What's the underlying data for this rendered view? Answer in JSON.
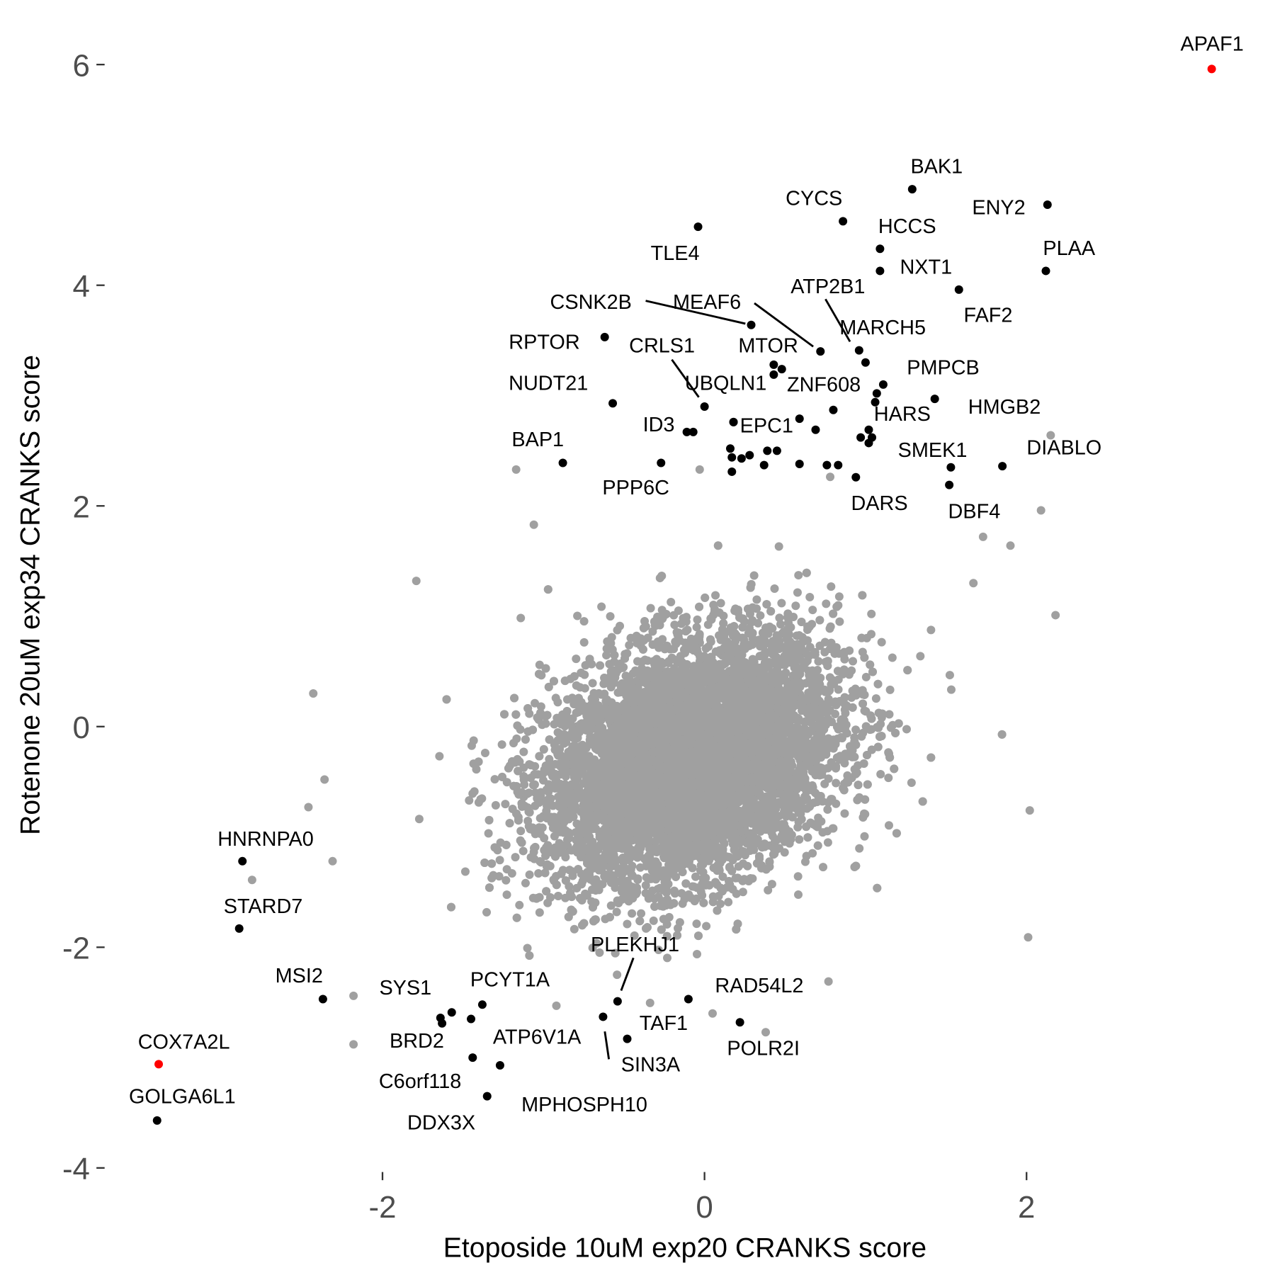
{
  "chart_data": {
    "type": "scatter",
    "title": "",
    "xlabel": "Etoposide 10uM exp20 CRANKS score",
    "ylabel": "Rotenone 20uM exp34 CRANKS score",
    "xlim": [
      -3.55,
      3.5
    ],
    "ylim": [
      -4.1,
      6.5
    ],
    "xticks": [
      -2,
      0,
      2
    ],
    "yticks": [
      -4,
      -2,
      0,
      2,
      4,
      6
    ],
    "grid": false,
    "colors": {
      "background_genes": "#a0a0a0",
      "hit": "#000000",
      "highlight": "#ff0000",
      "tick_text": "#4d4d4d"
    },
    "background_genes": {
      "description_n": 9000,
      "mean": [
        -0.08,
        -0.3
      ],
      "sd": [
        0.45,
        0.55
      ],
      "corr": 0.3,
      "outliers": [
        [
          -1.17,
          2.33
        ],
        [
          -1.79,
          1.32
        ],
        [
          2.15,
          2.64
        ],
        [
          2.18,
          1.01
        ],
        [
          2.01,
          -1.91
        ],
        [
          2.02,
          -0.76
        ],
        [
          -2.43,
          0.3
        ],
        [
          -2.46,
          -0.73
        ],
        [
          -2.36,
          -0.48
        ],
        [
          -2.18,
          -2.88
        ],
        [
          -2.18,
          -2.44
        ],
        [
          -2.81,
          -1.39
        ],
        [
          -2.31,
          -1.22
        ],
        [
          2.09,
          1.96
        ],
        [
          1.9,
          1.64
        ],
        [
          0.38,
          -2.77
        ],
        [
          0.77,
          -2.31
        ],
        [
          -0.92,
          -2.53
        ],
        [
          0.05,
          -2.6
        ],
        [
          -0.03,
          2.33
        ],
        [
          1.67,
          1.3
        ],
        [
          1.73,
          1.72
        ],
        [
          -1.06,
          1.83
        ]
      ]
    },
    "hits": [
      {
        "label": "APAF1",
        "x": 3.15,
        "y": 5.96,
        "highlight": true
      },
      {
        "label": "BAK1",
        "x": 1.29,
        "y": 4.87
      },
      {
        "label": "ENY2",
        "x": 2.13,
        "y": 4.73
      },
      {
        "label": "CYCS",
        "x": 0.86,
        "y": 4.58
      },
      {
        "label": "TLE4",
        "x": -0.04,
        "y": 4.53
      },
      {
        "label": "HCCS",
        "x": 1.09,
        "y": 4.33
      },
      {
        "label": "NXT1",
        "x": 1.09,
        "y": 4.13
      },
      {
        "label": "PLAA",
        "x": 2.12,
        "y": 4.13
      },
      {
        "label": "FAF2",
        "x": 1.58,
        "y": 3.96
      },
      {
        "label": "CSNK2B",
        "x": 0.29,
        "y": 3.64
      },
      {
        "label": "MEAF6",
        "x": 0.72,
        "y": 3.4
      },
      {
        "label": "ATP2B1",
        "x": 0.96,
        "y": 3.41
      },
      {
        "label": "RPTOR",
        "x": -0.62,
        "y": 3.53
      },
      {
        "label": "MTOR",
        "x": 0.48,
        "y": 3.24
      },
      {
        "label": "MARCH5",
        "x": 1.0,
        "y": 3.3
      },
      {
        "label": "CRLS1",
        "x": 0.0,
        "y": 2.9
      },
      {
        "label": "UBQLN1",
        "x": 0.43,
        "y": 3.19
      },
      {
        "label": "ZNF608",
        "x": 1.07,
        "y": 3.02
      },
      {
        "label": "PMPCB",
        "x": 1.11,
        "y": 3.1
      },
      {
        "label": "NUDT21",
        "x": -0.57,
        "y": 2.93
      },
      {
        "label": "HARS",
        "x": 1.06,
        "y": 2.94
      },
      {
        "label": "HMGB2",
        "x": 1.43,
        "y": 2.97
      },
      {
        "label": "ID3",
        "x": -0.07,
        "y": 2.67
      },
      {
        "label": "EPC1",
        "x": 0.18,
        "y": 2.76
      },
      {
        "label": "BAP1",
        "x": -0.88,
        "y": 2.39
      },
      {
        "label": "DIABLO",
        "x": 1.85,
        "y": 2.36
      },
      {
        "label": "SMEK1",
        "x": 1.53,
        "y": 2.35
      },
      {
        "label": "DBF4",
        "x": 1.52,
        "y": 2.19
      },
      {
        "label": "DARS",
        "x": 0.94,
        "y": 2.26
      },
      {
        "label": "PPP6C",
        "x": -0.27,
        "y": 2.39
      },
      {
        "label": "HNRNPA0",
        "x": -2.87,
        "y": -1.22
      },
      {
        "label": "STARD7",
        "x": -2.89,
        "y": -1.83
      },
      {
        "label": "MSI2",
        "x": -2.37,
        "y": -2.47
      },
      {
        "label": "COX7A2L",
        "x": -3.39,
        "y": -3.06,
        "highlight": true
      },
      {
        "label": "GOLGA6L1",
        "x": -3.4,
        "y": -3.57
      },
      {
        "label": "SYS1",
        "x": -1.57,
        "y": -2.59
      },
      {
        "label": "PCYT1A",
        "x": -1.38,
        "y": -2.52
      },
      {
        "label": "BRD2",
        "x": -1.64,
        "y": -2.64
      },
      {
        "label": "C6orf118",
        "x": -1.44,
        "y": -3.0
      },
      {
        "label": "ATP6V1A",
        "x": -1.27,
        "y": -3.07
      },
      {
        "label": "MPHOSPH10",
        "x": -1.35,
        "y": -3.35
      },
      {
        "label": "DDX3X",
        "x": -1.45,
        "y": -2.65
      },
      {
        "label": "PLEKHJ1",
        "x": -0.54,
        "y": -2.49
      },
      {
        "label": "SIN3A",
        "x": -0.63,
        "y": -2.63
      },
      {
        "label": "TAF1",
        "x": -0.48,
        "y": -2.83
      },
      {
        "label": "RAD54L2",
        "x": -0.1,
        "y": -2.47
      },
      {
        "label": "POLR2I",
        "x": 0.22,
        "y": -2.68
      }
    ],
    "unlabeled_hits": [
      [
        0.18,
        2.76
      ],
      [
        0.59,
        2.79
      ],
      [
        0.69,
        2.69
      ],
      [
        0.8,
        2.87
      ],
      [
        0.16,
        2.52
      ],
      [
        0.17,
        2.44
      ],
      [
        0.17,
        2.31
      ],
      [
        0.23,
        2.43
      ],
      [
        0.28,
        2.46
      ],
      [
        0.39,
        2.5
      ],
      [
        0.45,
        2.5
      ],
      [
        0.37,
        2.37
      ],
      [
        0.59,
        2.38
      ],
      [
        0.76,
        2.37
      ],
      [
        0.83,
        2.37
      ],
      [
        0.97,
        2.62
      ],
      [
        1.02,
        2.69
      ],
      [
        1.04,
        2.62
      ],
      [
        1.02,
        2.57
      ],
      [
        0.43,
        3.28
      ],
      [
        -1.63,
        -2.69
      ],
      [
        -0.11,
        2.67
      ]
    ]
  }
}
